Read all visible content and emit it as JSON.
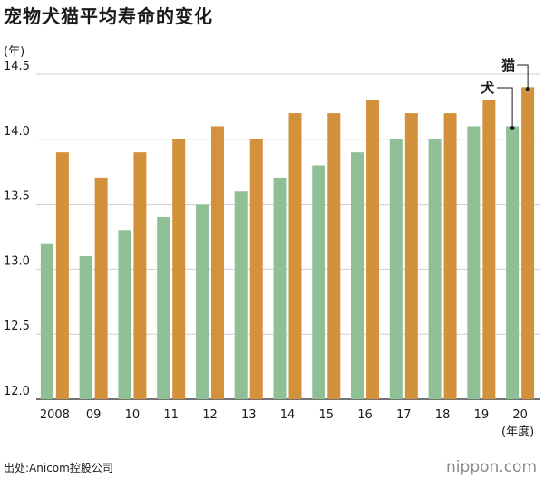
{
  "header": {
    "title": "宠物犬猫平均寿命的变化"
  },
  "axis_units": {
    "y": "(年)",
    "x": "(年度)"
  },
  "footer": {
    "source": "出处:Anicom控股公司",
    "brand": "nippon.com"
  },
  "colors": {
    "dog": "#8fbf94",
    "cat": "#d4913c",
    "grid": "#cfcfcf",
    "axis": "#444444"
  },
  "chart_data": {
    "type": "bar",
    "title": "宠物犬猫平均寿命的变化",
    "ylabel": "(年)",
    "xlabel": "(年度)",
    "categories": [
      "2008",
      "09",
      "10",
      "11",
      "12",
      "13",
      "14",
      "15",
      "16",
      "17",
      "18",
      "19",
      "20"
    ],
    "ylim": [
      12.0,
      14.5
    ],
    "yticks": [
      "12.0",
      "12.5",
      "13.0",
      "13.5",
      "14.0",
      "14.5"
    ],
    "grid": true,
    "series": [
      {
        "name": "犬",
        "values": [
          13.2,
          13.1,
          13.3,
          13.4,
          13.5,
          13.6,
          13.7,
          13.8,
          13.9,
          14.0,
          14.0,
          14.1,
          14.1
        ]
      },
      {
        "name": "猫",
        "values": [
          13.9,
          13.7,
          13.9,
          14.0,
          14.1,
          14.0,
          14.2,
          14.2,
          14.3,
          14.2,
          14.2,
          14.3,
          14.4
        ]
      }
    ]
  }
}
